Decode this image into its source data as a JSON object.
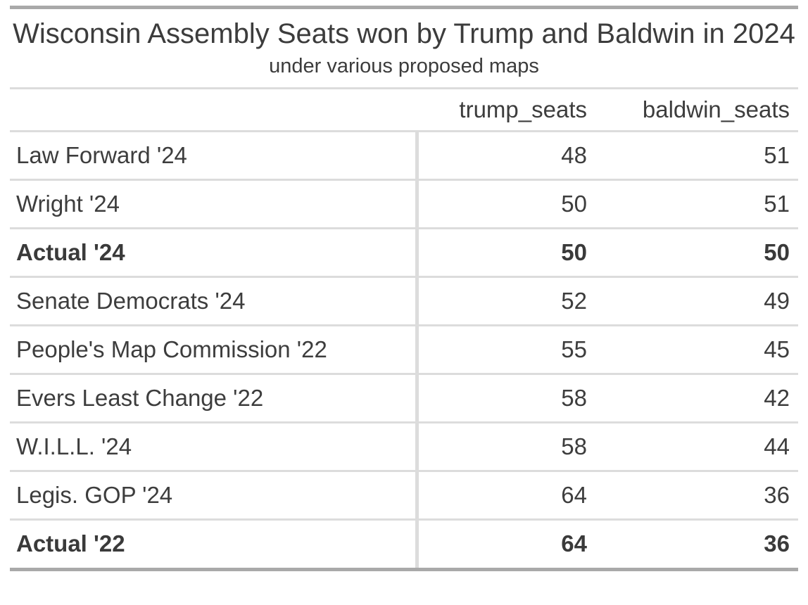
{
  "chart_data": {
    "type": "table",
    "title": "Wisconsin Assembly Seats won by Trump and Baldwin in 2024",
    "subtitle": "under various proposed maps",
    "columns": [
      "",
      "trump_seats",
      "baldwin_seats"
    ],
    "rows": [
      {
        "label": "Law Forward '24",
        "trump_seats": 48,
        "baldwin_seats": 51,
        "bold": false
      },
      {
        "label": "Wright '24",
        "trump_seats": 50,
        "baldwin_seats": 51,
        "bold": false
      },
      {
        "label": "Actual '24",
        "trump_seats": 50,
        "baldwin_seats": 50,
        "bold": true
      },
      {
        "label": "Senate Democrats '24",
        "trump_seats": 52,
        "baldwin_seats": 49,
        "bold": false
      },
      {
        "label": "People's Map Commission '22",
        "trump_seats": 55,
        "baldwin_seats": 45,
        "bold": false
      },
      {
        "label": "Evers Least Change '22",
        "trump_seats": 58,
        "baldwin_seats": 42,
        "bold": false
      },
      {
        "label": "W.I.L.L. '24",
        "trump_seats": 58,
        "baldwin_seats": 44,
        "bold": false
      },
      {
        "label": "Legis. GOP '24",
        "trump_seats": 64,
        "baldwin_seats": 36,
        "bold": false
      },
      {
        "label": "Actual '22",
        "trump_seats": 64,
        "baldwin_seats": 36,
        "bold": true
      }
    ],
    "layout": {
      "row_label_align": "left",
      "value_align": "right",
      "grid": "horizontal-rules"
    }
  },
  "colors": {
    "text": "#3d3d3d",
    "border_light": "#dcdcdc",
    "border_dark": "#a9a9a9",
    "background": "#ffffff"
  }
}
